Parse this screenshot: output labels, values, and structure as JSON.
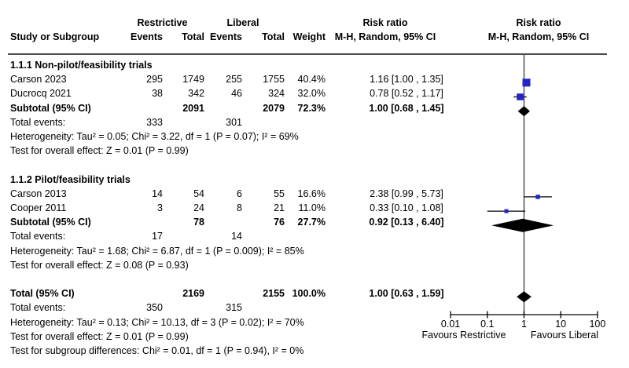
{
  "header": {
    "group1": "Restrictive",
    "group2": "Liberal",
    "col_study": "Study or Subgroup",
    "col_events": "Events",
    "col_total": "Total",
    "col_weight": "Weight",
    "risk_ratio": "Risk ratio",
    "method": "M-H, Random, 95% CI"
  },
  "axis": {
    "ticks": [
      0.01,
      0.1,
      1,
      10,
      100
    ],
    "tick_labels": [
      "0.01",
      "0.1",
      "1",
      "10",
      "100"
    ],
    "favours_left": "Favours Restrictive",
    "favours_right": "Favours Liberal"
  },
  "colors": {
    "square": "#2424c8",
    "diamond": "#000000",
    "ci_line": "#000000",
    "axis": "#000000",
    "vline": "#3a3a3a",
    "divider": "#4a4a4a"
  },
  "rows": [
    {
      "type": "section",
      "label": "1.1.1 Non-pilot/feasibility trials"
    },
    {
      "type": "study",
      "label": "Carson 2023",
      "e1": "295",
      "t1": "1749",
      "e2": "255",
      "t2": "1755",
      "weight": "40.4%",
      "ci": "1.16 [1.00 , 1.35]",
      "rr": 1.16,
      "lo": 1.0,
      "hi": 1.35,
      "sq": 10
    },
    {
      "type": "study",
      "label": "Ducrocq 2021",
      "e1": "38",
      "t1": "342",
      "e2": "46",
      "t2": "324",
      "weight": "32.0%",
      "ci": "0.78 [0.52 , 1.17]",
      "rr": 0.78,
      "lo": 0.52,
      "hi": 1.17,
      "sq": 8.5
    },
    {
      "type": "subtotal",
      "label": "Subtotal (95% CI)",
      "t1": "2091",
      "t2": "2079",
      "weight": "72.3%",
      "ci": "1.00 [0.68 , 1.45]",
      "rr": 1.0,
      "lo": 0.68,
      "hi": 1.45,
      "dh": 13
    },
    {
      "type": "events",
      "label": "Total events:",
      "e1": "333",
      "e2": "301"
    },
    {
      "type": "note",
      "label": "Heterogeneity: Tau² = 0.05; Chi² = 3.22, df = 1 (P = 0.07); I² = 69%"
    },
    {
      "type": "note",
      "label": "Test for overall effect: Z = 0.01 (P = 0.99)"
    },
    {
      "type": "blank",
      "label": ""
    },
    {
      "type": "section",
      "label": "1.1.2 Pilot/feasibility trials"
    },
    {
      "type": "study",
      "label": "Carson 2013",
      "e1": "14",
      "t1": "54",
      "e2": "6",
      "t2": "55",
      "weight": "16.6%",
      "ci": "2.38 [0.99 , 5.73]",
      "rr": 2.38,
      "lo": 0.99,
      "hi": 5.73,
      "sq": 5.5
    },
    {
      "type": "study",
      "label": "Cooper 2011",
      "e1": "3",
      "t1": "24",
      "e2": "8",
      "t2": "21",
      "weight": "11.0%",
      "ci": "0.33 [0.10 , 1.08]",
      "rr": 0.33,
      "lo": 0.1,
      "hi": 1.08,
      "sq": 5
    },
    {
      "type": "subtotal",
      "label": "Subtotal (95% CI)",
      "t1": "78",
      "t2": "76",
      "weight": "27.7%",
      "ci": "0.92 [0.13 , 6.40]",
      "rr": 0.92,
      "lo": 0.13,
      "hi": 6.4,
      "dh": 17
    },
    {
      "type": "events",
      "label": "Total events:",
      "e1": "17",
      "e2": "14"
    },
    {
      "type": "note",
      "label": "Heterogeneity: Tau² = 1.68; Chi² = 6.87, df = 1 (P = 0.009); I² = 85%"
    },
    {
      "type": "note",
      "label": "Test for overall effect: Z = 0.08 (P = 0.93)"
    },
    {
      "type": "blank",
      "label": ""
    },
    {
      "type": "subtotal",
      "label": "Total (95% CI)",
      "t1": "2169",
      "t2": "2155",
      "weight": "100.0%",
      "ci": "1.00 [0.63 , 1.59]",
      "rr": 1.0,
      "lo": 0.63,
      "hi": 1.59,
      "dh": 14
    },
    {
      "type": "events",
      "label": "Total events:",
      "e1": "350",
      "e2": "315"
    },
    {
      "type": "note",
      "label": "Heterogeneity: Tau² = 0.13; Chi² = 10.13, df = 3 (P = 0.02); I² = 70%"
    },
    {
      "type": "note",
      "label": "Test for overall effect: Z = 0.01 (P = 0.99)"
    },
    {
      "type": "note",
      "label": "Test for subgroup differences: Chi² = 0.01, df = 1 (P = 0.94), I² = 0%"
    }
  ],
  "chart_data": {
    "type": "scatter",
    "subtype": "forest_plot",
    "title": "Risk ratio, M-H, Random, 95% CI (Restrictive vs Liberal)",
    "x_scale": "log10",
    "x_range": [
      0.01,
      100
    ],
    "x_ticks": [
      0.01,
      0.1,
      1,
      10,
      100
    ],
    "axis_caption_left": "Favours Restrictive",
    "axis_caption_right": "Favours Liberal",
    "subgroups": [
      {
        "name": "1.1.1 Non-pilot/feasibility trials",
        "studies": [
          {
            "study": "Carson 2023",
            "restrictive_events": 295,
            "restrictive_total": 1749,
            "liberal_events": 255,
            "liberal_total": 1755,
            "weight_pct": 40.4,
            "rr": 1.16,
            "ci_low": 1.0,
            "ci_high": 1.35
          },
          {
            "study": "Ducrocq 2021",
            "restrictive_events": 38,
            "restrictive_total": 342,
            "liberal_events": 46,
            "liberal_total": 324,
            "weight_pct": 32.0,
            "rr": 0.78,
            "ci_low": 0.52,
            "ci_high": 1.17
          }
        ],
        "subtotal": {
          "restrictive_total": 2091,
          "liberal_total": 2079,
          "weight_pct": 72.3,
          "rr": 1.0,
          "ci_low": 0.68,
          "ci_high": 1.45,
          "total_events_restrictive": 333,
          "total_events_liberal": 301,
          "tau2": 0.05,
          "chi2": 3.22,
          "df": 1,
          "p_het": 0.07,
          "i2_pct": 69,
          "z": 0.01,
          "p_effect": 0.99
        }
      },
      {
        "name": "1.1.2 Pilot/feasibility trials",
        "studies": [
          {
            "study": "Carson 2013",
            "restrictive_events": 14,
            "restrictive_total": 54,
            "liberal_events": 6,
            "liberal_total": 55,
            "weight_pct": 16.6,
            "rr": 2.38,
            "ci_low": 0.99,
            "ci_high": 5.73
          },
          {
            "study": "Cooper 2011",
            "restrictive_events": 3,
            "restrictive_total": 24,
            "liberal_events": 8,
            "liberal_total": 21,
            "weight_pct": 11.0,
            "rr": 0.33,
            "ci_low": 0.1,
            "ci_high": 1.08
          }
        ],
        "subtotal": {
          "restrictive_total": 78,
          "liberal_total": 76,
          "weight_pct": 27.7,
          "rr": 0.92,
          "ci_low": 0.13,
          "ci_high": 6.4,
          "total_events_restrictive": 17,
          "total_events_liberal": 14,
          "tau2": 1.68,
          "chi2": 6.87,
          "df": 1,
          "p_het": 0.009,
          "i2_pct": 85,
          "z": 0.08,
          "p_effect": 0.93
        }
      }
    ],
    "total": {
      "restrictive_total": 2169,
      "liberal_total": 2155,
      "weight_pct": 100.0,
      "rr": 1.0,
      "ci_low": 0.63,
      "ci_high": 1.59,
      "total_events_restrictive": 350,
      "total_events_liberal": 315,
      "tau2": 0.13,
      "chi2": 10.13,
      "df": 3,
      "p_het": 0.02,
      "i2_pct": 70,
      "z": 0.01,
      "p_effect": 0.99,
      "subgroup_diff": {
        "chi2": 0.01,
        "df": 1,
        "p": 0.94,
        "i2_pct": 0
      }
    }
  }
}
